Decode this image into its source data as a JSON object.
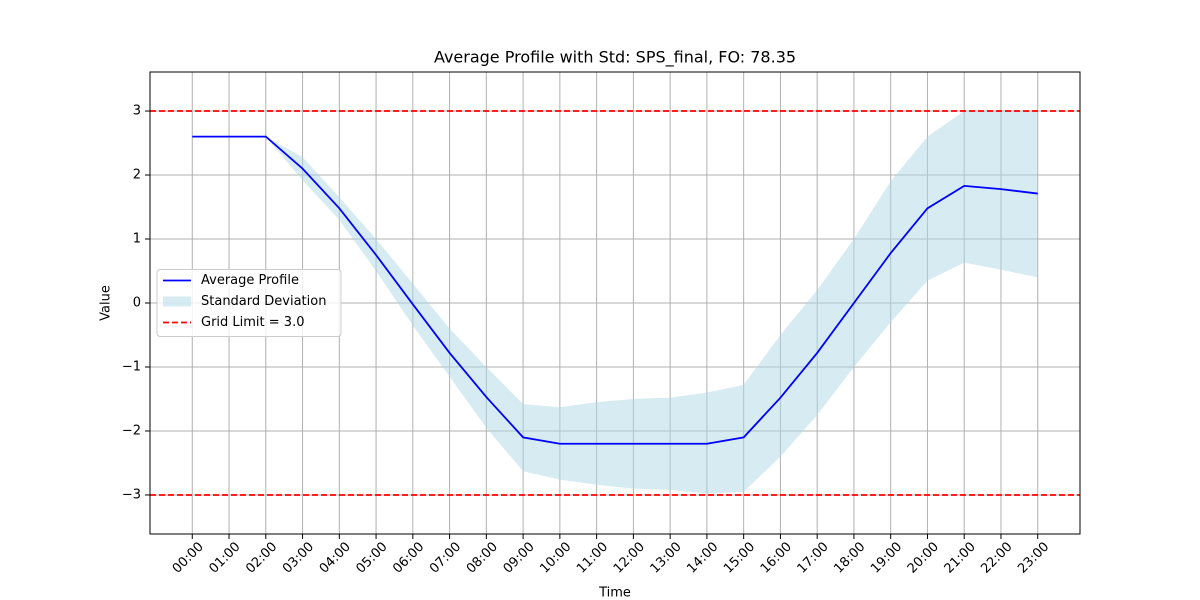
{
  "chart_data": {
    "type": "line",
    "title": "Average Profile with Std: SPS_final, FO: 78.35",
    "xlabel": "Time",
    "ylabel": "Value",
    "categories": [
      "00:00",
      "01:00",
      "02:00",
      "03:00",
      "04:00",
      "05:00",
      "06:00",
      "07:00",
      "08:00",
      "09:00",
      "10:00",
      "11:00",
      "12:00",
      "13:00",
      "14:00",
      "15:00",
      "16:00",
      "17:00",
      "18:00",
      "19:00",
      "20:00",
      "21:00",
      "22:00",
      "23:00"
    ],
    "series": [
      {
        "name": "Average Profile",
        "color": "#0000ff",
        "values": [
          2.6,
          2.6,
          2.6,
          2.1,
          1.48,
          0.75,
          -0.02,
          -0.78,
          -1.47,
          -2.1,
          -2.2,
          -2.2,
          -2.2,
          -2.2,
          -2.2,
          -2.1,
          -1.48,
          -0.78,
          0.0,
          0.78,
          1.48,
          1.83,
          1.78,
          1.71
        ]
      }
    ],
    "band": {
      "name": "Standard Deviation",
      "color": "#add8e6",
      "upper": [
        2.6,
        2.6,
        2.6,
        2.28,
        1.65,
        1.0,
        0.3,
        -0.4,
        -1.0,
        -1.58,
        -1.63,
        -1.55,
        -1.5,
        -1.48,
        -1.4,
        -1.28,
        -0.5,
        0.2,
        1.0,
        1.9,
        2.6,
        3.0,
        3.0,
        3.0
      ],
      "lower": [
        2.6,
        2.6,
        2.6,
        1.92,
        1.3,
        0.5,
        -0.35,
        -1.15,
        -1.95,
        -2.63,
        -2.76,
        -2.84,
        -2.9,
        -2.92,
        -2.98,
        -2.95,
        -2.4,
        -1.75,
        -1.0,
        -0.3,
        0.35,
        0.63,
        0.52,
        0.4
      ]
    },
    "hlines": {
      "name": "Grid Limit = 3.0",
      "color": "#ff0000",
      "values": [
        3,
        -3
      ]
    },
    "ylim": [
      -3.61,
      3.61
    ],
    "yticks": [
      {
        "value": -3,
        "label": "−3"
      },
      {
        "value": -2,
        "label": "−2"
      },
      {
        "value": -1,
        "label": "−1"
      },
      0,
      1,
      2,
      3
    ],
    "grid": true,
    "legend": "center left"
  }
}
